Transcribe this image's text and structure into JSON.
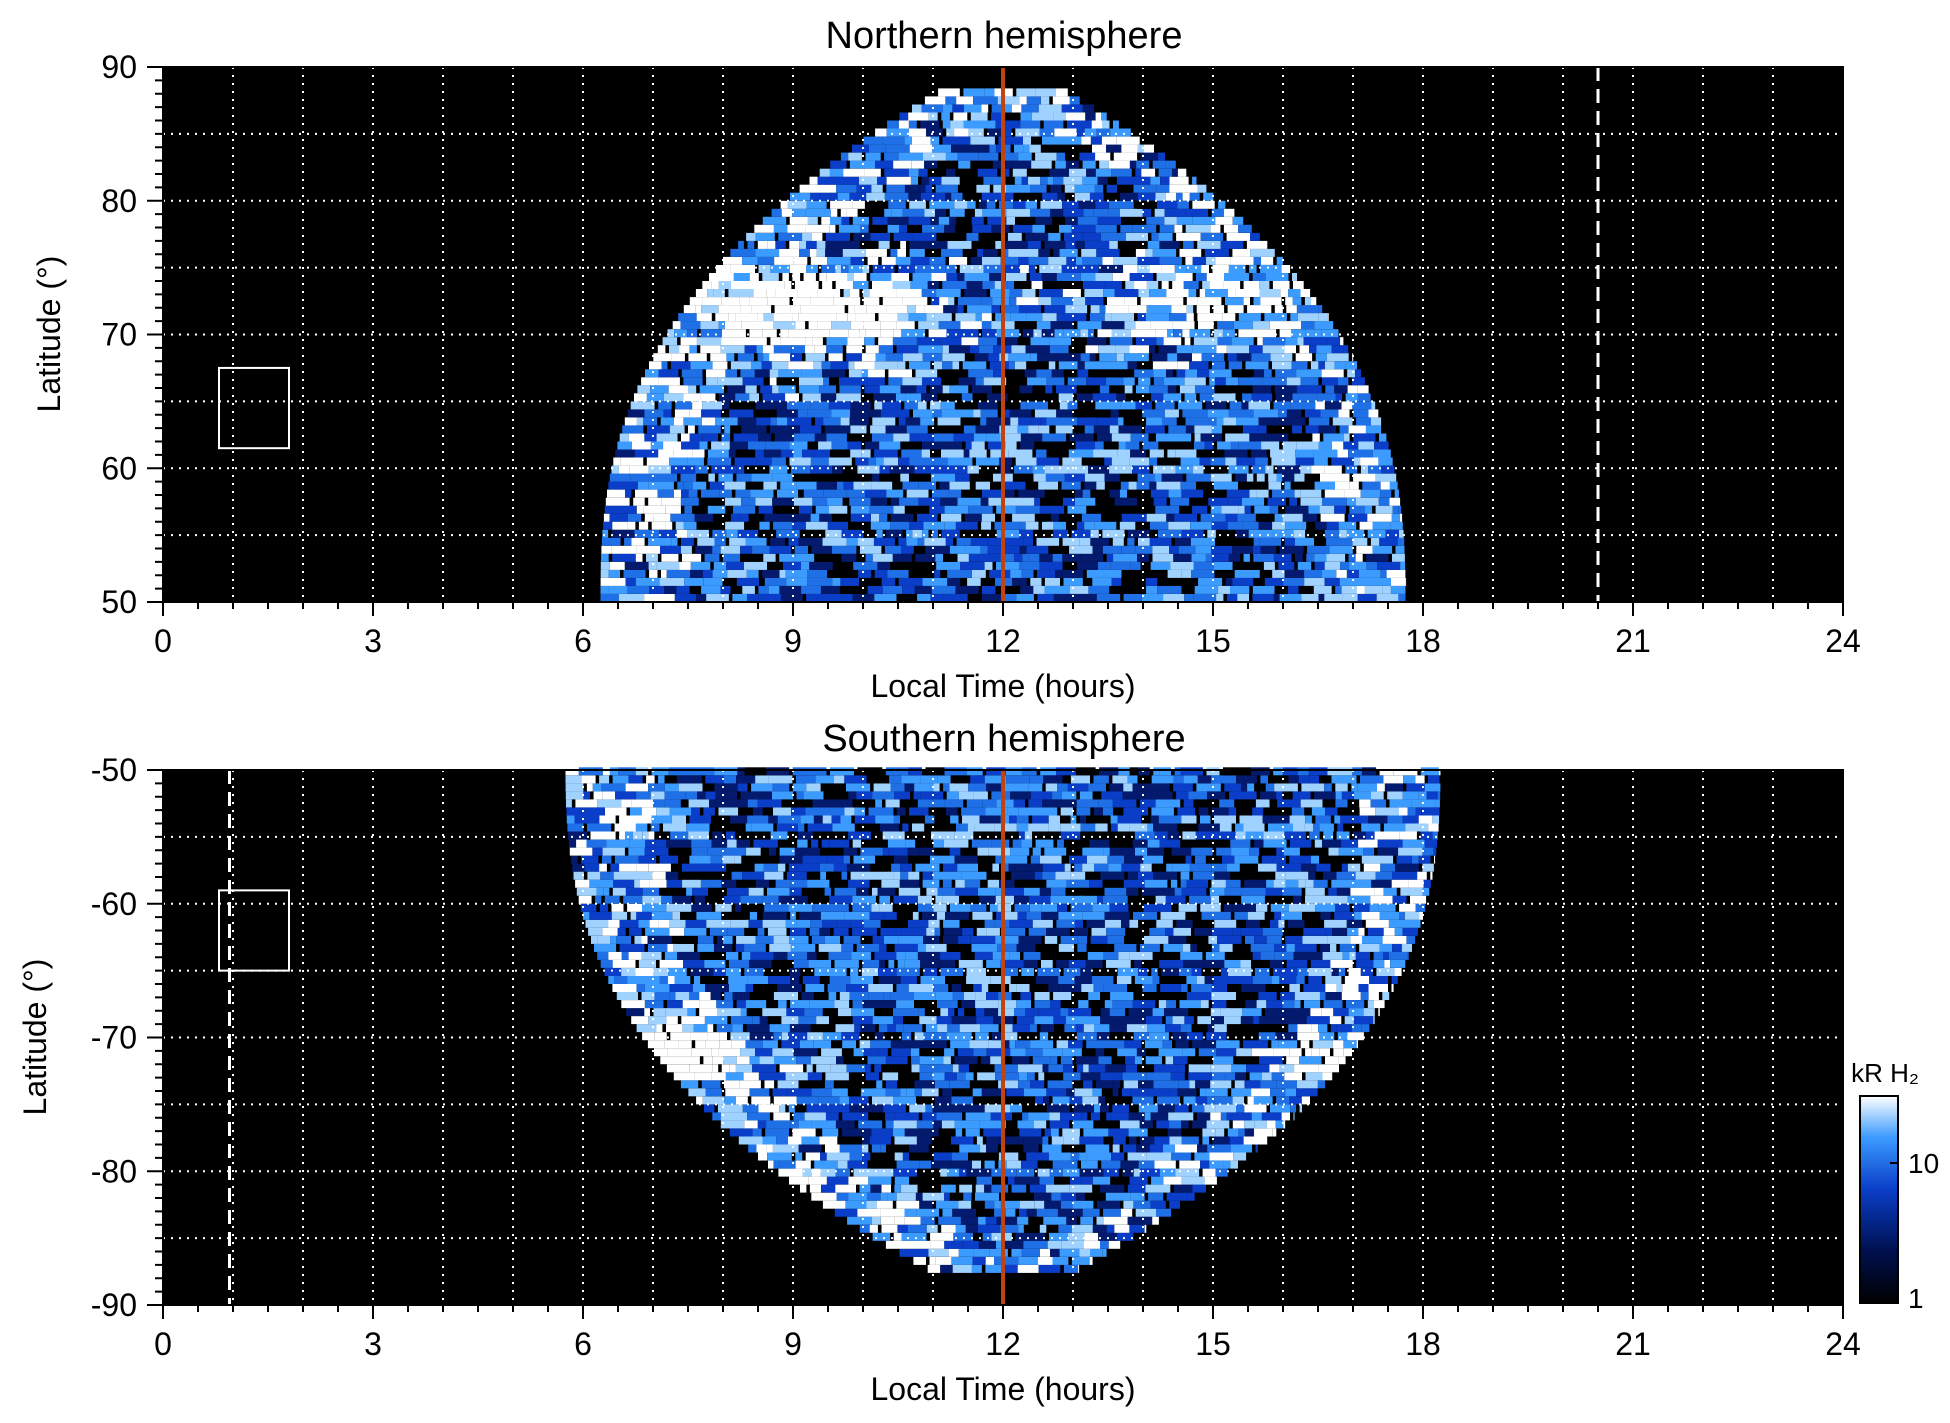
{
  "chart_data": [
    {
      "type": "heatmap",
      "title": "Northern hemisphere",
      "xlabel": "Local Time (hours)",
      "ylabel": "Latitude (°)",
      "xlim": [
        0,
        24
      ],
      "ylim": [
        50,
        90
      ],
      "x_ticks": [
        0,
        3,
        6,
        9,
        12,
        15,
        18,
        21,
        24
      ],
      "y_ticks": [
        50,
        60,
        70,
        80,
        90
      ],
      "x_grid": [
        1,
        2,
        3,
        4,
        5,
        6,
        7,
        8,
        9,
        10,
        11,
        12,
        13,
        14,
        15,
        16,
        17,
        18,
        19,
        20,
        21,
        22,
        23
      ],
      "y_grid": [
        55,
        60,
        65,
        70,
        75,
        80,
        85
      ],
      "grid": true,
      "coverage": {
        "lt_start": 6.5,
        "lt_end": 18.0,
        "lat_top": 88
      },
      "bright_oval_rows": [
        {
          "lt": 9.3,
          "lat": 71.5,
          "spread_lt": 1.6,
          "spread_lat": 3.5
        }
      ],
      "noon_line_lt": 12,
      "dashed_line_lt": 20.5,
      "box": {
        "lt": [
          0.8,
          1.8
        ],
        "lat": [
          61.5,
          67.5
        ]
      },
      "colors": {
        "background": "#000000",
        "noon_line": "#c1440e",
        "box": "#ffffff",
        "dashed_line": "#ffffff"
      }
    },
    {
      "type": "heatmap",
      "title": "Southern hemisphere",
      "xlabel": "Local Time (hours)",
      "ylabel": "Latitude (°)",
      "xlim": [
        0,
        24
      ],
      "ylim": [
        -90,
        -50
      ],
      "x_ticks": [
        0,
        3,
        6,
        9,
        12,
        15,
        18,
        21,
        24
      ],
      "y_ticks": [
        -90,
        -80,
        -70,
        -60,
        -50
      ],
      "x_grid": [
        1,
        2,
        3,
        4,
        5,
        6,
        7,
        8,
        9,
        10,
        11,
        12,
        13,
        14,
        15,
        16,
        17,
        18,
        19,
        20,
        21,
        22,
        23
      ],
      "y_grid": [
        -85,
        -80,
        -75,
        -70,
        -65,
        -60,
        -55
      ],
      "grid": true,
      "coverage": {
        "lt_start": 6.0,
        "lt_end": 18.5,
        "lat_bottom": -88
      },
      "bright_oval_rows": [
        {
          "lt": 7.0,
          "lat": -72.0,
          "spread_lt": 1.3,
          "spread_lat": 2.0
        }
      ],
      "noon_line_lt": 12,
      "dashed_line_lt": 0.95,
      "box": {
        "lt": [
          0.8,
          1.8
        ],
        "lat": [
          -65,
          -59
        ]
      },
      "colors": {
        "background": "#000000",
        "noon_line": "#c1440e",
        "box": "#ffffff",
        "dashed_line": "#ffffff"
      }
    }
  ],
  "colorbar": {
    "label": "kR H₂",
    "ticks": [
      "10",
      "1"
    ],
    "tick_values": [
      10,
      1
    ],
    "range": [
      1,
      30
    ],
    "scale": "log",
    "colors": [
      "#000000",
      "#00104f",
      "#0a3ec8",
      "#3c9bff",
      "#ffffff"
    ]
  }
}
